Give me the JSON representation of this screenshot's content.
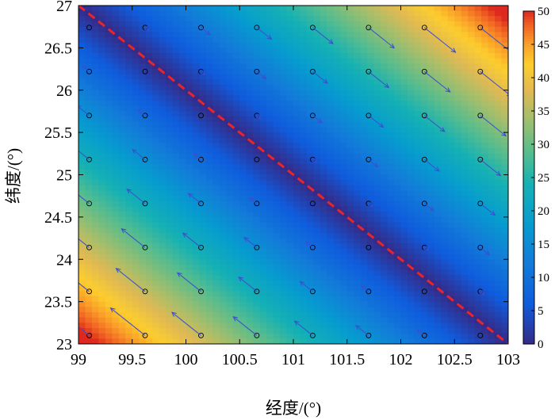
{
  "chart_data": {
    "type": "heatmap",
    "title": "",
    "xlabel": "经度/(°)",
    "ylabel": "纬度/(°)",
    "xlim": [
      99,
      103
    ],
    "ylim": [
      23,
      27
    ],
    "x_ticks": [
      99,
      99.5,
      100,
      100.5,
      101,
      101.5,
      102,
      102.5,
      103
    ],
    "x_tick_labels": [
      "99",
      "99.5",
      "100",
      "100.5",
      "101",
      "101.5",
      "102",
      "102.5",
      "103"
    ],
    "y_ticks": [
      23,
      23.5,
      24,
      24.5,
      25,
      25.5,
      26,
      26.5,
      27
    ],
    "y_tick_labels": [
      "23",
      "23.5",
      "24",
      "24.5",
      "25",
      "25.5",
      "26",
      "26.5",
      "27"
    ],
    "colorbar": {
      "min": 0,
      "max": 50,
      "ticks": [
        0,
        5,
        10,
        15,
        20,
        25,
        30,
        35,
        40,
        45,
        50
      ],
      "tick_labels": [
        "0",
        "5",
        "10",
        "15",
        "20",
        "25",
        "30",
        "35",
        "40",
        "45",
        "50"
      ],
      "colormap": "parula-like"
    },
    "field": {
      "description_fn": "value grows linearly with distance from the dashed line",
      "line_start": [
        99,
        27
      ],
      "line_end": [
        103,
        23
      ],
      "scale_per_degree": 18.5,
      "max_value": 50
    },
    "grid_points": {
      "x": [
        99.1,
        99.62,
        100.14,
        100.66,
        101.18,
        101.7,
        102.22,
        102.74
      ],
      "y": [
        23.1,
        23.62,
        24.14,
        24.66,
        25.18,
        25.7,
        26.22,
        26.74
      ]
    },
    "arrows": {
      "direction_above_line": [
        0.78,
        -0.62
      ],
      "direction_below_line": [
        -0.78,
        0.62
      ],
      "note": "vector length proportional to field value"
    },
    "reference_line": {
      "style": "dashed",
      "color": "#e8262a",
      "points": [
        [
          99,
          27
        ],
        [
          103,
          23
        ]
      ]
    },
    "colors": {
      "arrow": "#3a4fd0",
      "marker": "#000000",
      "dashed_line": "#e8262a"
    }
  }
}
